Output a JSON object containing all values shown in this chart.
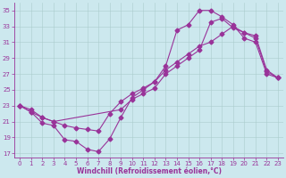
{
  "xlabel": "Windchill (Refroidissement éolien,°C)",
  "bg_color": "#cce8ee",
  "line_color": "#993399",
  "xlim": [
    -0.5,
    23.5
  ],
  "ylim": [
    16.5,
    36.0
  ],
  "yticks": [
    17,
    19,
    21,
    23,
    25,
    27,
    29,
    31,
    33,
    35
  ],
  "xticks": [
    0,
    1,
    2,
    3,
    4,
    5,
    6,
    7,
    8,
    9,
    10,
    11,
    12,
    13,
    14,
    15,
    16,
    17,
    18,
    19,
    20,
    21,
    22,
    23
  ],
  "curve1_x": [
    0,
    1,
    2,
    3,
    4,
    5,
    6,
    7,
    8,
    9,
    10,
    11,
    12,
    13,
    14,
    15,
    16,
    17,
    18,
    19,
    20,
    21,
    22,
    23
  ],
  "curve1_y": [
    23.0,
    22.2,
    20.8,
    20.5,
    18.7,
    18.5,
    17.5,
    17.2,
    18.8,
    21.5,
    24.0,
    25.0,
    26.0,
    28.0,
    32.5,
    33.2,
    35.0,
    35.0,
    34.2,
    33.2,
    31.5,
    31.0,
    27.0,
    26.5
  ],
  "curve2_x": [
    0,
    1,
    2,
    3,
    9,
    10,
    11,
    12,
    13,
    14,
    15,
    16,
    17,
    18,
    19,
    20,
    21,
    22,
    23
  ],
  "curve2_y": [
    23.0,
    22.2,
    21.5,
    21.0,
    22.5,
    23.8,
    24.5,
    25.2,
    27.0,
    28.0,
    29.0,
    30.0,
    33.5,
    34.0,
    32.8,
    32.2,
    31.8,
    27.5,
    26.5
  ],
  "curve3_x": [
    0,
    1,
    2,
    3,
    4,
    5,
    6,
    7,
    8,
    9,
    10,
    11,
    12,
    13,
    14,
    15,
    16,
    17,
    18,
    19,
    20,
    21,
    22,
    23
  ],
  "curve3_y": [
    23.0,
    22.5,
    21.5,
    21.0,
    20.5,
    20.2,
    20.0,
    19.8,
    22.0,
    23.5,
    24.5,
    25.2,
    26.0,
    27.5,
    28.5,
    29.5,
    30.5,
    31.0,
    32.0,
    33.0,
    32.2,
    31.5,
    27.3,
    26.5
  ],
  "grid_color": "#aacccc",
  "marker_size": 2.5,
  "line_width": 0.8,
  "tick_fontsize": 5,
  "xlabel_fontsize": 5.5
}
